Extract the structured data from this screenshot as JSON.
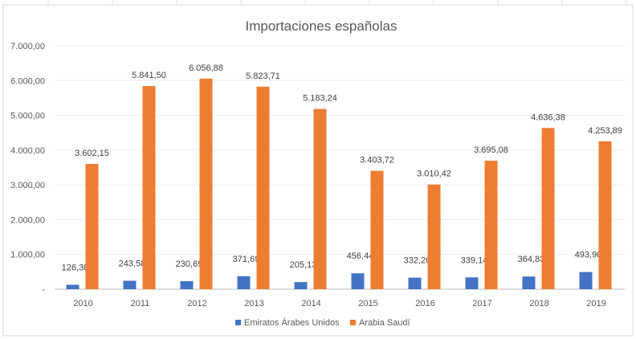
{
  "chart_data": {
    "type": "bar",
    "title": "Importaciones españolas",
    "categories": [
      "2010",
      "2011",
      "2012",
      "2013",
      "2014",
      "2015",
      "2016",
      "2017",
      "2018",
      "2019"
    ],
    "series": [
      {
        "name": "Emiratos Árabes Unidos",
        "color": "#4472C4",
        "values": [
          126.3,
          243.58,
          230.69,
          371.69,
          205.13,
          456.44,
          332.2,
          339.14,
          364.83,
          493.9
        ],
        "labels": [
          "126,30",
          "243,58",
          "230,69",
          "371,69",
          "205,13",
          "456,44",
          "332,20",
          "339,14",
          "364,83",
          "493,90"
        ]
      },
      {
        "name": "Arabia Saudí",
        "color": "#ED7D31",
        "values": [
          3602.15,
          5841.5,
          6056.88,
          5823.71,
          5183.24,
          3403.72,
          3010.42,
          3695.08,
          4636.38,
          4253.89
        ],
        "labels": [
          "3.602,15",
          "5.841,50",
          "6.056,88",
          "5.823,71",
          "5.183,24",
          "3.403,72",
          "3.010,42",
          "3.695,08",
          "4.636,38",
          "4.253,89"
        ]
      }
    ],
    "ylim": [
      0,
      7000
    ],
    "yticks": [
      0,
      1000,
      2000,
      3000,
      4000,
      5000,
      6000,
      7000
    ],
    "ytick_labels": [
      "-",
      "1.000,00",
      "2.000,00",
      "3.000,00",
      "4.000,00",
      "5.000,00",
      "6.000,00",
      "7.000,00"
    ],
    "grid": true,
    "legend_position": "bottom"
  }
}
